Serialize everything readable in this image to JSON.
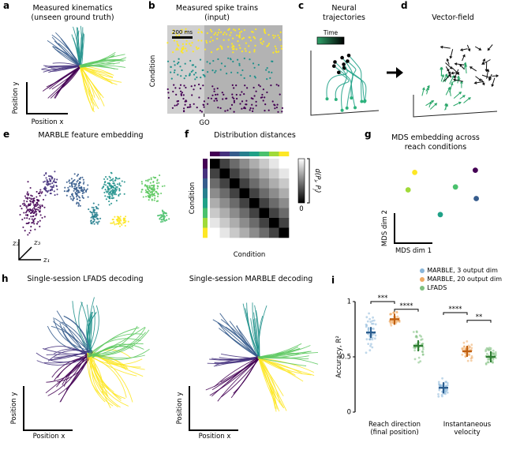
{
  "figure": {
    "bg": "#ffffff",
    "panels": {
      "a": {
        "letter": "a",
        "title": "Measured kinematics\n(unseen ground truth)",
        "xlabel": "Position x",
        "ylabel": "Position y"
      },
      "b": {
        "letter": "b",
        "title": "Measured spike trains\n(input)",
        "ylabel": "Condition",
        "xlabel": "GO",
        "scalebar": "200 ms"
      },
      "c": {
        "letter": "c",
        "title": "Neural\ntrajectories",
        "legend": "Time"
      },
      "d": {
        "letter": "d",
        "title": "Vector-field"
      },
      "e": {
        "letter": "e",
        "title": "MARBLE feature embedding",
        "ax1": "z₁",
        "ax2": "z₂",
        "ax3": "z₃"
      },
      "f": {
        "letter": "f",
        "title": "Distribution distances",
        "xlabel": "Condition",
        "ylabel": "Condition"
      },
      "g": {
        "letter": "g",
        "title": "MDS embedding across\nreach conditions",
        "xlabel": "MDS dim 1",
        "ylabel": "MDS dim 2"
      },
      "h": {
        "letter": "h",
        "title_left": "Single-session LFADS decoding",
        "title_right": "Single-session MARBLE decoding",
        "xlabel": "Position x",
        "ylabel": "Position y"
      },
      "i": {
        "letter": "i",
        "ylabel": "Accuracy, R²"
      }
    }
  },
  "chart_data": [
    {
      "id": "a",
      "type": "line",
      "title": "Measured kinematics (unseen ground truth)",
      "xlabel": "Position x",
      "ylabel": "Position y",
      "center": [
        100,
        56
      ],
      "curv": 0.22,
      "seed": 3,
      "bundles": [
        {
          "angle": -95,
          "spread": 30,
          "color": "#21918c",
          "n": 13,
          "len": [
            36,
            52
          ]
        },
        {
          "angle": -135,
          "spread": 22,
          "color": "#365c8d",
          "n": 11,
          "len": [
            36,
            54
          ]
        },
        {
          "angle": 178,
          "spread": 18,
          "color": "#46327e",
          "n": 10,
          "len": [
            34,
            50
          ]
        },
        {
          "angle": 137,
          "spread": 26,
          "color": "#440154",
          "n": 12,
          "len": [
            40,
            60
          ]
        },
        {
          "angle": 65,
          "spread": 24,
          "color": "#fde725",
          "n": 12,
          "len": [
            40,
            62
          ]
        },
        {
          "angle": 22,
          "spread": 16,
          "color": "#fde725",
          "n": 8,
          "len": [
            36,
            56
          ]
        },
        {
          "angle": -5,
          "spread": 34,
          "color": "#5ec962",
          "n": 13,
          "len": [
            40,
            62
          ]
        }
      ]
    },
    {
      "id": "b",
      "type": "scatter",
      "seed": 11,
      "go_x": 0.32,
      "bg": [
        {
          "x": 0,
          "w": 0.32,
          "color": "#cfcfcf"
        },
        {
          "x": 0.32,
          "w": 0.68,
          "color": "#b3b3b3"
        }
      ],
      "bands": [
        {
          "color": "#fde725",
          "y0": 0.05,
          "y1": 0.3,
          "rows": 9,
          "n": [
            10,
            22
          ]
        },
        {
          "color": "#21918c",
          "y0": 0.38,
          "y1": 0.6,
          "rows": 8,
          "n": [
            7,
            16
          ]
        },
        {
          "color": "#440154",
          "y0": 0.68,
          "y1": 0.97,
          "rows": 9,
          "n": [
            9,
            20
          ]
        }
      ]
    },
    {
      "id": "c",
      "type": "line",
      "n": 9,
      "seed": 5,
      "line_color": "#1fa187",
      "start_color": "#2db27d",
      "end_color": "#000000",
      "grad": [
        "#2fa36a",
        "#000000"
      ]
    },
    {
      "id": "d",
      "type": "scatter",
      "seed": 9,
      "green": "#27a567",
      "black": "#111111",
      "n_green": 26,
      "n_black": 30
    },
    {
      "id": "e",
      "type": "scatter",
      "seed": 13,
      "clusters": [
        {
          "cx": 40,
          "cy": 85,
          "sx": 13,
          "sy": 24,
          "n": 150,
          "color": "#440154"
        },
        {
          "cx": 62,
          "cy": 55,
          "sx": 9,
          "sy": 13,
          "n": 70,
          "color": "#46327e"
        },
        {
          "cx": 95,
          "cy": 62,
          "sx": 12,
          "sy": 18,
          "n": 130,
          "color": "#365c8d"
        },
        {
          "cx": 118,
          "cy": 95,
          "sx": 7,
          "sy": 12,
          "n": 60,
          "color": "#277f8e"
        },
        {
          "cx": 140,
          "cy": 60,
          "sx": 12,
          "sy": 17,
          "n": 120,
          "color": "#21918c"
        },
        {
          "cx": 150,
          "cy": 100,
          "sx": 10,
          "sy": 6,
          "n": 50,
          "color": "#fde725"
        },
        {
          "cx": 190,
          "cy": 62,
          "sx": 13,
          "sy": 18,
          "n": 110,
          "color": "#5ec962"
        },
        {
          "cx": 205,
          "cy": 95,
          "sx": 6,
          "sy": 10,
          "n": 40,
          "color": "#4ac16d"
        }
      ]
    },
    {
      "id": "f",
      "type": "heatmap",
      "condition_colors": [
        "#440154",
        "#46327e",
        "#365c8d",
        "#277f8e",
        "#1fa187",
        "#4ac16d",
        "#a0da39",
        "#fde725"
      ],
      "values": [
        [
          0,
          0.26,
          0.42,
          0.55,
          0.68,
          0.79,
          0.9,
          1.0
        ],
        [
          0.26,
          0,
          0.26,
          0.42,
          0.55,
          0.68,
          0.79,
          0.9
        ],
        [
          0.42,
          0.26,
          0,
          0.26,
          0.42,
          0.55,
          0.68,
          0.79
        ],
        [
          0.55,
          0.42,
          0.26,
          0,
          0.26,
          0.42,
          0.55,
          0.68
        ],
        [
          0.68,
          0.55,
          0.42,
          0.26,
          0,
          0.26,
          0.42,
          0.55
        ],
        [
          0.79,
          0.68,
          0.55,
          0.42,
          0.26,
          0,
          0.26,
          0.42
        ],
        [
          0.9,
          0.79,
          0.68,
          0.55,
          0.42,
          0.26,
          0,
          0.26
        ],
        [
          1.0,
          0.9,
          0.79,
          0.68,
          0.55,
          0.42,
          0.26,
          0
        ]
      ],
      "colorbar": {
        "label": "d(P_i, P_j)",
        "min": "0"
      }
    },
    {
      "id": "g",
      "type": "scatter",
      "xlabel": "MDS dim 1",
      "ylabel": "MDS dim 2",
      "points": [
        {
          "x": 0.13,
          "y": 0.2,
          "c": "#fde725"
        },
        {
          "x": 0.06,
          "y": 0.44,
          "c": "#a0da39"
        },
        {
          "x": 0.4,
          "y": 0.78,
          "c": "#1fa187"
        },
        {
          "x": 0.56,
          "y": 0.4,
          "c": "#4ac16d"
        },
        {
          "x": 0.78,
          "y": 0.56,
          "c": "#365c8d"
        },
        {
          "x": 0.77,
          "y": 0.17,
          "c": "#440154"
        }
      ]
    },
    {
      "id": "h1",
      "type": "line",
      "title": "Single-session LFADS decoding",
      "center": [
        108,
        88
      ],
      "curv": 0.65,
      "seed": 17,
      "bundles": [
        {
          "angle": -95,
          "spread": 30,
          "color": "#21918c",
          "n": 14,
          "len": [
            45,
            75
          ]
        },
        {
          "angle": -135,
          "spread": 25,
          "color": "#365c8d",
          "n": 12,
          "len": [
            45,
            78
          ]
        },
        {
          "angle": 178,
          "spread": 22,
          "color": "#46327e",
          "n": 11,
          "len": [
            45,
            70
          ]
        },
        {
          "angle": 135,
          "spread": 30,
          "color": "#440154",
          "n": 14,
          "len": [
            50,
            82
          ]
        },
        {
          "angle": 60,
          "spread": 30,
          "color": "#fde725",
          "n": 16,
          "len": [
            50,
            85
          ]
        },
        {
          "angle": 15,
          "spread": 20,
          "color": "#fde725",
          "n": 10,
          "len": [
            45,
            75
          ]
        },
        {
          "angle": -15,
          "spread": 35,
          "color": "#5ec962",
          "n": 14,
          "len": [
            50,
            82
          ]
        }
      ]
    },
    {
      "id": "h2",
      "type": "line",
      "title": "Single-session MARBLE decoding",
      "center": [
        112,
        92
      ],
      "curv": 0.22,
      "seed": 8,
      "bundles": [
        {
          "angle": -95,
          "spread": 30,
          "color": "#21918c",
          "n": 13,
          "len": [
            48,
            75
          ]
        },
        {
          "angle": -135,
          "spread": 22,
          "color": "#365c8d",
          "n": 11,
          "len": [
            48,
            76
          ]
        },
        {
          "angle": 178,
          "spread": 18,
          "color": "#46327e",
          "n": 10,
          "len": [
            44,
            68
          ]
        },
        {
          "angle": 137,
          "spread": 26,
          "color": "#440154",
          "n": 12,
          "len": [
            50,
            80
          ]
        },
        {
          "angle": 65,
          "spread": 24,
          "color": "#fde725",
          "n": 12,
          "len": [
            50,
            80
          ]
        },
        {
          "angle": 22,
          "spread": 16,
          "color": "#fde725",
          "n": 8,
          "len": [
            46,
            74
          ]
        },
        {
          "angle": -5,
          "spread": 34,
          "color": "#5ec962",
          "n": 13,
          "len": [
            50,
            80
          ]
        }
      ]
    },
    {
      "id": "i",
      "type": "scatter",
      "ylim": [
        0,
        1
      ],
      "yticks": [
        "0",
        "0.5",
        "1"
      ],
      "ylabel": "Accuracy, R²",
      "categories": [
        {
          "label": "Reach direction\n(final position)"
        },
        {
          "label": "Instantaneous\nvelocity"
        }
      ],
      "series": [
        {
          "name": "MARBLE, 3 output dim",
          "color": "#8ab6d9",
          "dark": "#2b5d8f",
          "means": [
            0.72,
            0.22
          ],
          "sd": [
            0.1,
            0.045
          ]
        },
        {
          "name": "MARBLE, 20 output dim",
          "color": "#efa963",
          "dark": "#c05f10",
          "means": [
            0.84,
            0.55
          ],
          "sd": [
            0.045,
            0.05
          ]
        },
        {
          "name": "LFADS",
          "color": "#7fbf7f",
          "dark": "#2e7d32",
          "means": [
            0.6,
            0.5
          ],
          "sd": [
            0.07,
            0.05
          ]
        }
      ],
      "n_points": 45,
      "seed": 21,
      "sig": [
        {
          "g": 0,
          "a": 0,
          "b": 1,
          "v": 1.0,
          "label": "***"
        },
        {
          "g": 0,
          "a": 1,
          "b": 2,
          "v": 0.93,
          "label": "****"
        },
        {
          "g": 1,
          "a": 0,
          "b": 1,
          "v": 0.9,
          "label": "****"
        },
        {
          "g": 1,
          "a": 1,
          "b": 2,
          "v": 0.83,
          "label": "**"
        }
      ]
    }
  ]
}
